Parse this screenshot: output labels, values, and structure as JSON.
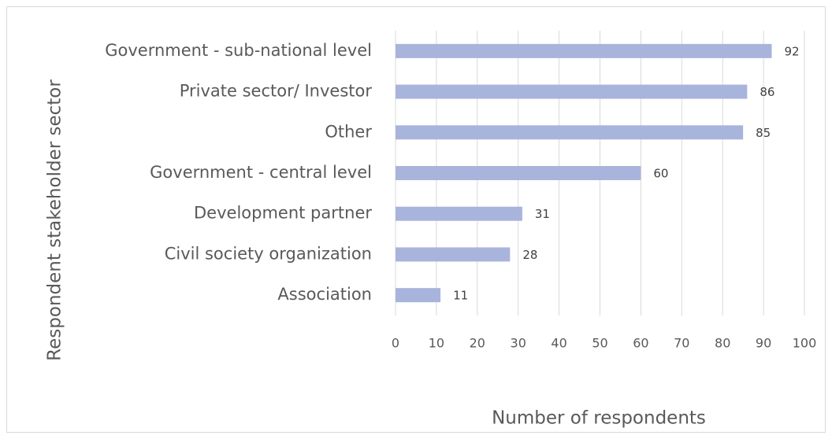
{
  "chart_data": {
    "type": "bar",
    "xlabel": "Number of respondents",
    "ylabel": "Respondent stakeholder sector",
    "categories": [
      "Government - sub-national level",
      "Private sector/ Investor",
      "Other",
      "Government - central level",
      "Development partner",
      "Civil society organization",
      "Association"
    ],
    "values": [
      92,
      86,
      85,
      60,
      31,
      28,
      11
    ],
    "color": "#a9b4dc",
    "xlim": [
      0,
      100
    ],
    "xticks": [
      0,
      10,
      20,
      30,
      40,
      50,
      60,
      70,
      80,
      90,
      100
    ],
    "grid": true
  }
}
